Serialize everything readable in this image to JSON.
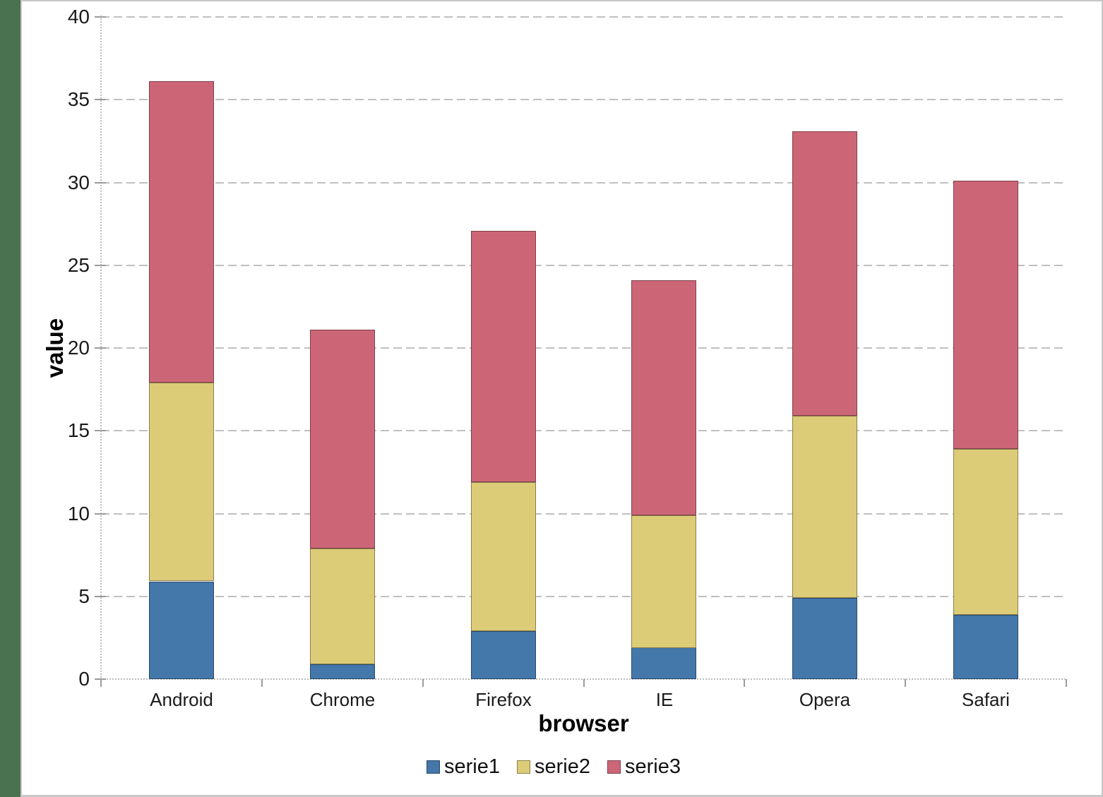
{
  "frame": {
    "desktop_background_color": "#4A7150",
    "panel_background_color": "#FFFFFF",
    "panel_border_color": "#C8C8C8"
  },
  "chart_data": {
    "type": "bar",
    "stacked": true,
    "title": "",
    "xlabel": "browser",
    "ylabel": "value",
    "categories": [
      "Android",
      "Chrome",
      "Firefox",
      "IE",
      "Opera",
      "Safari"
    ],
    "series": [
      {
        "name": "serie1",
        "color": "#4477AA",
        "values": [
          5.9,
          0.9,
          2.9,
          1.9,
          4.9,
          3.9
        ]
      },
      {
        "name": "serie2",
        "color": "#DDCC77",
        "values": [
          12,
          7,
          9,
          8,
          11,
          10
        ]
      },
      {
        "name": "serie3",
        "color": "#CC6677",
        "values": [
          18.2,
          13.2,
          15.2,
          14.2,
          17.2,
          16.2
        ]
      }
    ],
    "stack_totals": [
      36.1,
      21.1,
      27.1,
      24.1,
      33.1,
      30.1
    ],
    "ylim": [
      0,
      40
    ],
    "ytick_step": 5,
    "yticks": [
      0,
      5,
      10,
      15,
      20,
      25,
      30,
      35,
      40
    ],
    "grid": "horizontal-dashed",
    "gridline_color": "#C0C0C0",
    "legend_position": "bottom",
    "legend_entries": [
      "serie1",
      "serie2",
      "serie3"
    ]
  }
}
